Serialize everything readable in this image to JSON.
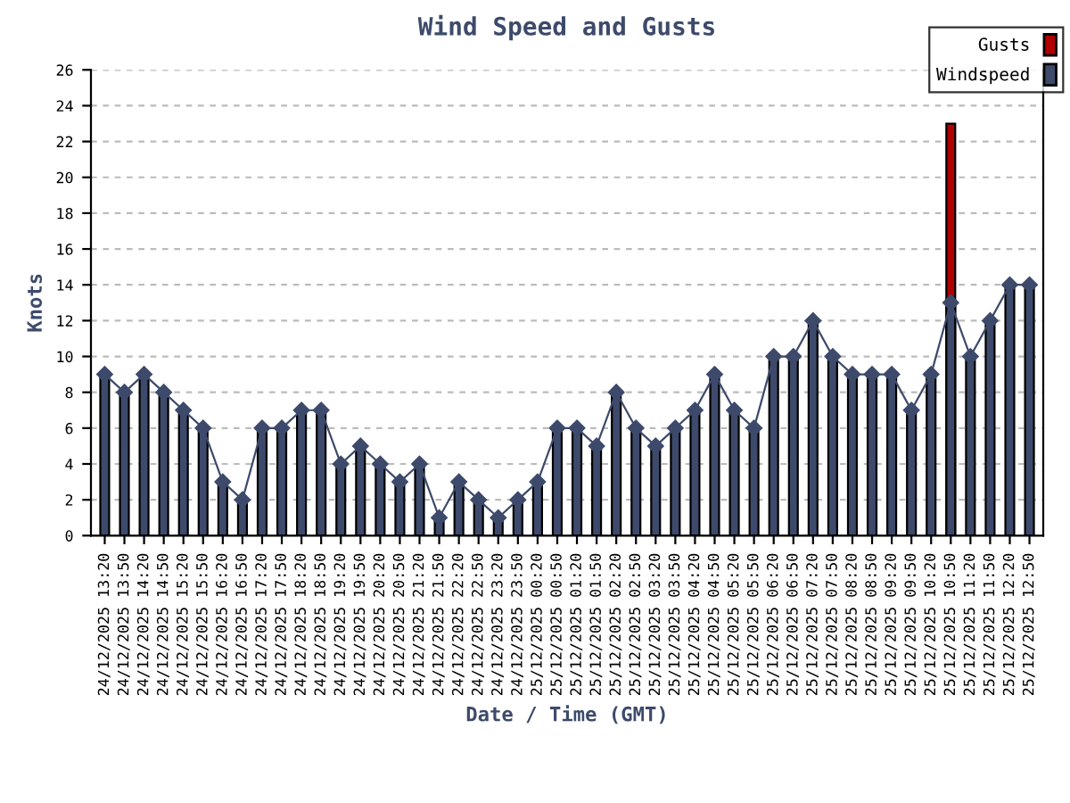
{
  "chart_data": {
    "type": "bar",
    "title": "Wind Speed and Gusts",
    "xlabel": "Date / Time (GMT)",
    "ylabel": "Knots",
    "categories": [
      "24/12/2025 13:20",
      "24/12/2025 13:50",
      "24/12/2025 14:20",
      "24/12/2025 14:50",
      "24/12/2025 15:20",
      "24/12/2025 15:50",
      "24/12/2025 16:20",
      "24/12/2025 16:50",
      "24/12/2025 17:20",
      "24/12/2025 17:50",
      "24/12/2025 18:20",
      "24/12/2025 18:50",
      "24/12/2025 19:20",
      "24/12/2025 19:50",
      "24/12/2025 20:20",
      "24/12/2025 20:50",
      "24/12/2025 21:20",
      "24/12/2025 21:50",
      "24/12/2025 22:20",
      "24/12/2025 22:50",
      "24/12/2025 23:20",
      "24/12/2025 23:50",
      "25/12/2025 00:20",
      "25/12/2025 00:50",
      "25/12/2025 01:20",
      "25/12/2025 01:50",
      "25/12/2025 02:20",
      "25/12/2025 02:50",
      "25/12/2025 03:20",
      "25/12/2025 03:50",
      "25/12/2025 04:20",
      "25/12/2025 04:50",
      "25/12/2025 05:20",
      "25/12/2025 05:50",
      "25/12/2025 06:20",
      "25/12/2025 06:50",
      "25/12/2025 07:20",
      "25/12/2025 07:50",
      "25/12/2025 08:20",
      "25/12/2025 08:50",
      "25/12/2025 09:20",
      "25/12/2025 09:50",
      "25/12/2025 10:20",
      "25/12/2025 10:50",
      "25/12/2025 11:20",
      "25/12/2025 11:50",
      "25/12/2025 12:20",
      "25/12/2025 12:50"
    ],
    "series": [
      {
        "name": "Gusts",
        "color": "#b00000",
        "values": [
          null,
          null,
          null,
          null,
          null,
          null,
          null,
          null,
          null,
          null,
          null,
          null,
          null,
          null,
          null,
          null,
          null,
          null,
          null,
          null,
          null,
          null,
          null,
          null,
          null,
          null,
          null,
          null,
          null,
          null,
          null,
          null,
          null,
          null,
          null,
          null,
          null,
          null,
          null,
          null,
          null,
          null,
          null,
          23,
          null,
          null,
          null,
          null
        ]
      },
      {
        "name": "Windspeed",
        "color": "#3d4a6b",
        "values": [
          9,
          8,
          9,
          8,
          7,
          6,
          3,
          2,
          6,
          6,
          7,
          7,
          4,
          5,
          4,
          3,
          4,
          1,
          3,
          2,
          1,
          2,
          3,
          6,
          6,
          5,
          8,
          6,
          5,
          6,
          7,
          9,
          7,
          6,
          10,
          10,
          12,
          10,
          9,
          9,
          9,
          7,
          9,
          13,
          10,
          12,
          14,
          14
        ]
      },
      {
        "type": "line",
        "color": "#3d4a6b",
        "marker": "diamond",
        "values": [
          9,
          8,
          9,
          8,
          7,
          6,
          3,
          2,
          6,
          6,
          7,
          7,
          4,
          5,
          4,
          3,
          4,
          1,
          3,
          2,
          1,
          2,
          3,
          6,
          6,
          5,
          8,
          6,
          5,
          6,
          7,
          9,
          7,
          6,
          10,
          10,
          12,
          10,
          9,
          9,
          9,
          7,
          9,
          13,
          10,
          12,
          14,
          14
        ]
      }
    ],
    "ylim": [
      0,
      26
    ],
    "yticks": [
      0,
      2,
      4,
      6,
      8,
      10,
      12,
      14,
      16,
      18,
      20,
      22,
      24,
      26
    ],
    "grid": "y",
    "legend": "top right"
  }
}
